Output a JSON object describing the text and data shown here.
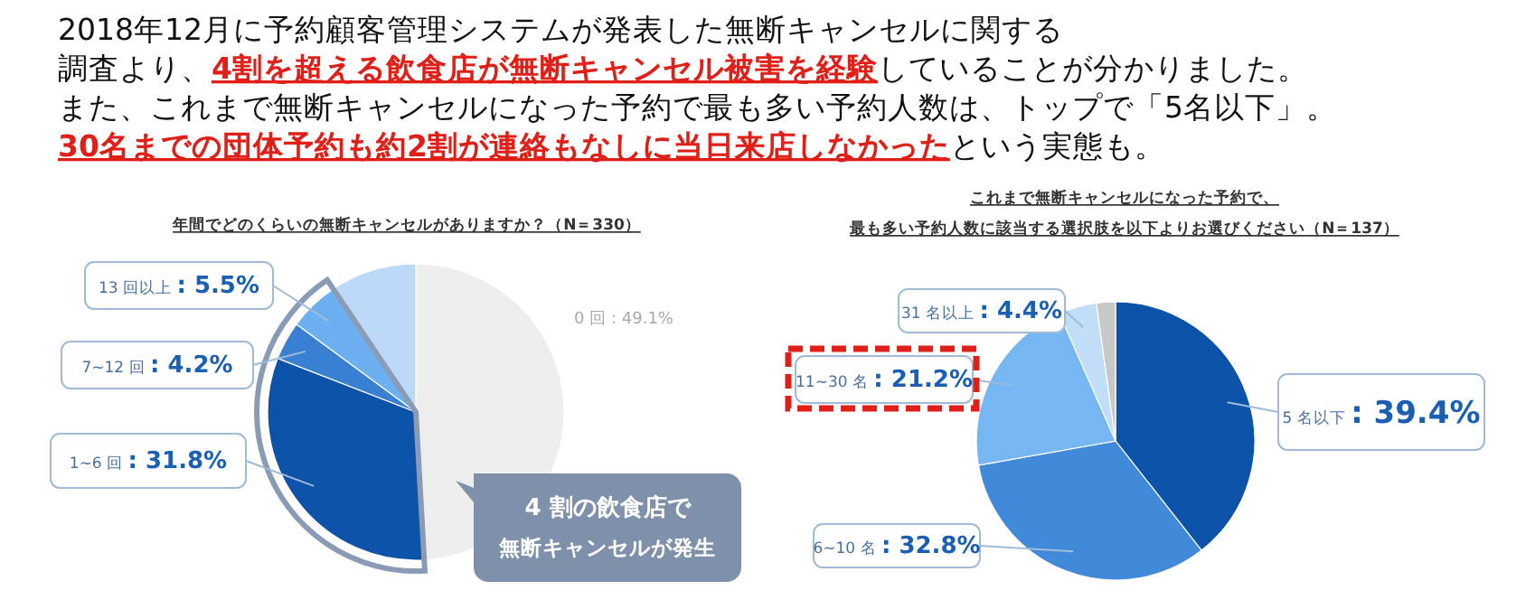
{
  "chart_data": [
    {
      "type": "other",
      "annotations": [
        "2018年12月に予約顧客管理システムが発表した無断キャンセルに関する",
        "調査より、",
        "4割を超える飲食店が無断キャンセル被害を経験",
        "していることが分かりました。",
        "また、これまで無断キャンセルになった予約で最も多い予約人数は、トップで「5名以下」。",
        "30名までの団体予約も約2割が連絡もなしに当日来店しなかった",
        "という実態も。"
      ]
    },
    {
      "type": "pie",
      "title": "年間でどのくらいの無断キャンセルがありますか？（N＝330）",
      "categories": [
        "0 回",
        "1~6 回",
        "7~12 回",
        "13 回以上",
        null
      ],
      "values": [
        49.1,
        31.8,
        4.2,
        5.5,
        9.4
      ],
      "value_labels": [
        ": 49.1%",
        ": 31.8%",
        ": 4.2%",
        ": 5.5%",
        null
      ],
      "colors": [
        "#eeeeee",
        "#0b52a8",
        "#3a80d2",
        "#6cb0f2",
        "#bcdaf7"
      ],
      "annotations": [
        "4 割の飲食店で",
        "無断キャンセルが発生"
      ]
    },
    {
      "type": "pie",
      "title": "これまで無断キャンセルになった予約で、",
      "subtitle": "最も多い予約人数に該当する選択肢を以下よりお選びください（N＝137）",
      "categories": [
        "5 名以下",
        "6~10 名",
        "11~30 名",
        "31 名以上",
        null
      ],
      "values": [
        39.4,
        32.8,
        21.2,
        4.4,
        2.2
      ],
      "value_labels": [
        ": 39.4%",
        ": 32.8%",
        ": 21.2%",
        ": 4.4%",
        null
      ],
      "colors": [
        "#0b52a8",
        "#408ad9",
        "#76b6f3",
        "#c2ddf8",
        "#c8c8c8"
      ]
    }
  ]
}
